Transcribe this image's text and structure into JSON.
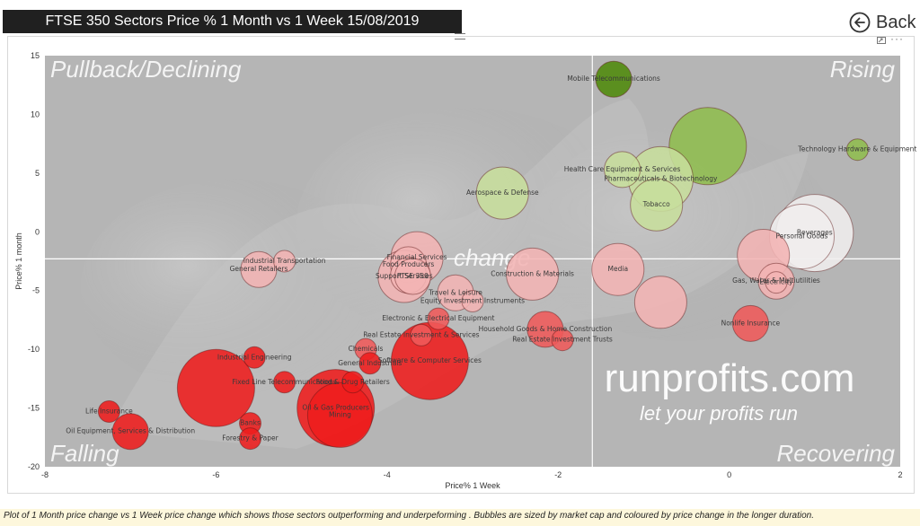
{
  "header": {
    "title": "FTSE 350 Sectors Price % 1 Month vs 1 Week 15/08/2019"
  },
  "nav": {
    "back_label": "Back",
    "back_icon": "back-arrow-circle-icon"
  },
  "visual_header": {
    "focus_icon": "focus-mode-icon",
    "more_icon": "more-options-icon"
  },
  "footer": {
    "caption": "Plot of  1 Month price change vs 1 Week price change which shows those sectors outperforming and underpeforming . Bubbles are sized by market cap and coloured by price change in the longer duration."
  },
  "watermark": {
    "site": "runprofits.com",
    "tagline": "let your profits run",
    "center_word": "change"
  },
  "quadrants": {
    "top_left": "Pullback/Declining",
    "top_right": "Rising",
    "bottom_left": "Falling",
    "bottom_right": "Recovering"
  },
  "colors": {
    "strong_negative": "#ee1c1c",
    "negative": "#ef5a5a",
    "light_negative": "#f2b4b4",
    "neutral": "#f0eeee",
    "light_positive": "#c7de9c",
    "positive": "#8fbd4e",
    "strong_positive": "#4e8a0a",
    "plot_background": "#b5b5b5"
  },
  "chart_data": {
    "type": "scatter",
    "title": "FTSE 350 Sectors Price % 1 Month vs 1 Week 15/08/2019",
    "xlabel": "Price% 1 Week",
    "ylabel": "Price% 1 month",
    "xlim": [
      -8,
      2
    ],
    "ylim": [
      -20,
      15
    ],
    "x_ticks": [
      "-8",
      "-6",
      "-4",
      "-2",
      "0",
      "2"
    ],
    "y_ticks": [
      "15",
      "10",
      "5",
      "0",
      "-5",
      "-10",
      "-15",
      "-20"
    ],
    "reference_lines": {
      "x": -1.6,
      "y": -2.3
    },
    "grid": false,
    "bubble_size": "market cap",
    "bubble_color": "1 month price change",
    "points": [
      {
        "label": "Mobile Telecommunications",
        "x": -1.35,
        "y": 13.0,
        "size": 2
      },
      {
        "label": "Health Care Equipment & Services",
        "x": -1.25,
        "y": 5.3,
        "size": 2
      },
      {
        "label": "Technology Hardware & Equipment",
        "x": 1.5,
        "y": 7.0,
        "size": 1
      },
      {
        "label": "",
        "x": -0.25,
        "y": 7.3,
        "size": 5
      },
      {
        "label": "Pharmaceuticals & Biotechnology",
        "x": -0.8,
        "y": 4.5,
        "size": 4
      },
      {
        "label": "Aerospace & Defense",
        "x": -2.65,
        "y": 3.3,
        "size": 3
      },
      {
        "label": "Tobacco",
        "x": -0.85,
        "y": 2.3,
        "size": 3
      },
      {
        "label": "Beverages",
        "x": 1.0,
        "y": -0.1,
        "size": 5
      },
      {
        "label": "Personal Goods",
        "x": 0.85,
        "y": -0.4,
        "size": 4
      },
      {
        "label": "",
        "x": 0.4,
        "y": -2.0,
        "size": 3
      },
      {
        "label": "Gas, Water & Multiutilities",
        "x": 0.55,
        "y": -4.2,
        "size": 2
      },
      {
        "label": "Electricity",
        "x": 0.55,
        "y": -4.3,
        "size": 1
      },
      {
        "label": "Financial Services",
        "x": -3.65,
        "y": -2.2,
        "size": 3
      },
      {
        "label": "Food Producers",
        "x": -3.75,
        "y": -2.8,
        "size": 2
      },
      {
        "label": "Construction & Materials",
        "x": -2.3,
        "y": -3.6,
        "size": 3
      },
      {
        "label": "Support Services",
        "x": -3.8,
        "y": -3.8,
        "size": 3
      },
      {
        "label": "",
        "x": -3.75,
        "y": -3.7,
        "size": 2
      },
      {
        "label": "FTSE 350",
        "x": -3.7,
        "y": -3.8,
        "size": 2
      },
      {
        "label": "Industrial Transportation",
        "x": -5.2,
        "y": -2.5,
        "size": 1
      },
      {
        "label": "General Retailers",
        "x": -5.5,
        "y": -3.2,
        "size": 2
      },
      {
        "label": "Media",
        "x": -1.3,
        "y": -3.2,
        "size": 3
      },
      {
        "label": "Travel & Leisure",
        "x": -3.2,
        "y": -5.2,
        "size": 2
      },
      {
        "label": "Equity Investment Instruments",
        "x": -3.0,
        "y": -5.9,
        "size": 1
      },
      {
        "label": "",
        "x": -0.8,
        "y": -6.0,
        "size": 3
      },
      {
        "label": "Electronic & Electrical Equipment",
        "x": -3.4,
        "y": -7.4,
        "size": 1
      },
      {
        "label": "Nonlife Insurance",
        "x": 0.25,
        "y": -7.8,
        "size": 2
      },
      {
        "label": "Household Goods & Home Construction",
        "x": -2.15,
        "y": -8.3,
        "size": 2
      },
      {
        "label": "Real Estate Investment & Services",
        "x": -3.6,
        "y": -8.8,
        "size": 1
      },
      {
        "label": "Real Estate Investment Trusts",
        "x": -1.95,
        "y": -9.2,
        "size": 1
      },
      {
        "label": "Chemicals",
        "x": -4.25,
        "y": -10.0,
        "size": 1
      },
      {
        "label": "Software & Computer Services",
        "x": -3.5,
        "y": -11.0,
        "size": 5
      },
      {
        "label": "General Industrials",
        "x": -4.2,
        "y": -11.2,
        "size": 1
      },
      {
        "label": "Industrial Engineering",
        "x": -5.55,
        "y": -10.7,
        "size": 1
      },
      {
        "label": "Fixed Line Telecommunications",
        "x": -5.2,
        "y": -12.8,
        "size": 1
      },
      {
        "label": "Food & Drug Retailers",
        "x": -4.4,
        "y": -12.8,
        "size": 1
      },
      {
        "label": "",
        "x": -6.0,
        "y": -13.3,
        "size": 5
      },
      {
        "label": "Oil & Gas Producers",
        "x": -4.6,
        "y": -15.0,
        "size": 5
      },
      {
        "label": "Mining",
        "x": -4.55,
        "y": -15.6,
        "size": 4
      },
      {
        "label": "Life Insurance",
        "x": -7.25,
        "y": -15.3,
        "size": 1
      },
      {
        "label": "Oil Equipment, Services & Distribution",
        "x": -7.0,
        "y": -17.0,
        "size": 2
      },
      {
        "label": "Banks",
        "x": -5.6,
        "y": -16.3,
        "size": 1
      },
      {
        "label": "Forestry & Paper",
        "x": -5.6,
        "y": -17.6,
        "size": 1
      }
    ]
  }
}
